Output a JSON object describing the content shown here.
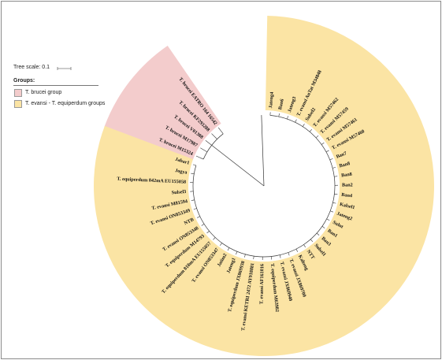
{
  "legend": {
    "tree_scale_label": "Tree scale: 0.1",
    "groups_title": "Groups:",
    "groups": [
      {
        "label": "T. brucei group",
        "color": "#f3cccc"
      },
      {
        "label": "T. evansi - T. equiperdum groups",
        "color": "#fbe4a4"
      }
    ]
  },
  "colors": {
    "brucei_band": "#f3cccc",
    "evansi_band": "#fbe4a4",
    "branch": "#333333"
  },
  "taxa": [
    {
      "label": "Jateng4",
      "group": 1
    },
    {
      "label": "Ban6",
      "group": 1
    },
    {
      "label": "Jateng3",
      "group": 1
    },
    {
      "label": "T. evansi AnTat M34848",
      "group": 1
    },
    {
      "label": "Sulsel2",
      "group": 1
    },
    {
      "label": "T. evansi M57462",
      "group": 1
    },
    {
      "label": "T. evansi M57459",
      "group": 1
    },
    {
      "label": "T. evansi M57461",
      "group": 1
    },
    {
      "label": "T. evansi M57460",
      "group": 1
    },
    {
      "label": "Ban7",
      "group": 1
    },
    {
      "label": "Ban8",
      "group": 1
    },
    {
      "label": "Ban8",
      "group": 1
    },
    {
      "label": "Ban2",
      "group": 1
    },
    {
      "label": "Ban4",
      "group": 1
    },
    {
      "label": "Kalsel1",
      "group": 1
    },
    {
      "label": "Jateng2",
      "group": 1
    },
    {
      "label": "Sulut",
      "group": 1
    },
    {
      "label": "Ban1",
      "group": 1
    },
    {
      "label": "Ban3",
      "group": 1
    },
    {
      "label": "Sulsel1",
      "group": 1
    },
    {
      "label": "NTT",
      "group": 1
    },
    {
      "label": "Kalteng",
      "group": 1
    },
    {
      "label": "T. evansi JX869700",
      "group": 1
    },
    {
      "label": "T. evansi JX869940",
      "group": 1
    },
    {
      "label": "T. equiperdum M63982",
      "group": 1
    },
    {
      "label": "T. evansi AF161016",
      "group": 1
    },
    {
      "label": "T. evansi KETRI 2472 AY918881",
      "group": 1
    },
    {
      "label": "T. equiperdum JX869938",
      "group": 1
    },
    {
      "label": "Jateng1",
      "group": 1
    },
    {
      "label": "Jatim2",
      "group": 1
    },
    {
      "label": "T. evansi ON853347",
      "group": 1
    },
    {
      "label": "T. equiperdum 818mA EU155057",
      "group": 1
    },
    {
      "label": "T. equiperdum M14793",
      "group": 1
    },
    {
      "label": "T. evansi ON853348",
      "group": 1
    },
    {
      "label": "NTB",
      "group": 1
    },
    {
      "label": "T. evansi ON853349",
      "group": 1
    },
    {
      "label": "T. evansi M81594",
      "group": 1
    },
    {
      "label": "Sulsel3",
      "group": 1
    },
    {
      "label": "T. equiperdum 842mA EU155058",
      "group": 1
    },
    {
      "label": "Jogya",
      "group": 1
    },
    {
      "label": "Jabar1",
      "group": 1
    },
    {
      "label": "T. brucei M15324",
      "group": 0
    },
    {
      "label": "T. brucei M17987",
      "group": 0
    },
    {
      "label": "T. brucei V01388",
      "group": 0
    },
    {
      "label": "T. brucei KF293288",
      "group": 0
    },
    {
      "label": "T. brucei EATRO 164 16542",
      "group": 0
    }
  ]
}
